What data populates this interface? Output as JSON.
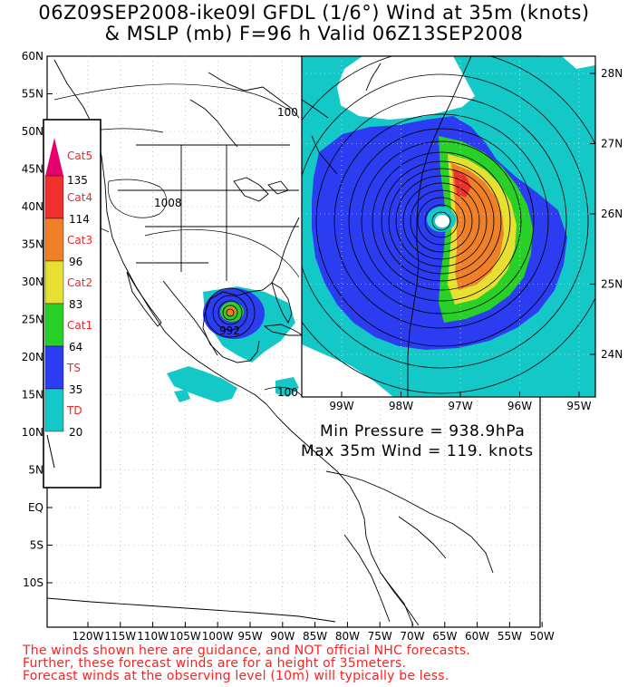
{
  "title": {
    "line1": "06Z09SEP2008-ike09l GFDL (1/6°) Wind at 35m (knots)",
    "line2": "& MSLP (mb) F=96 h Valid 06Z13SEP2008"
  },
  "main_map": {
    "lat_labels": [
      "60N",
      "55N",
      "50N",
      "45N",
      "40N",
      "35N",
      "30N",
      "25N",
      "20N",
      "15N",
      "10N",
      "5N",
      "EQ",
      "5S",
      "10S"
    ],
    "lon_labels": [
      "120W",
      "115W",
      "110W",
      "105W",
      "100W",
      "95W",
      "90W",
      "85W",
      "80W",
      "75W",
      "70W",
      "65W",
      "60W",
      "55W",
      "50W"
    ],
    "isobar_labels": [
      "1008",
      "992",
      "100",
      "100"
    ]
  },
  "inset_map": {
    "lat_labels": [
      "28N",
      "27N",
      "26N",
      "25N",
      "24N"
    ],
    "lon_labels": [
      "99W",
      "98W",
      "97W",
      "96W",
      "95W"
    ]
  },
  "legend": {
    "items": [
      {
        "category": "Cat5",
        "threshold": "135",
        "color": "#e6006e"
      },
      {
        "category": "Cat4",
        "threshold": "114",
        "color": "#f0302c"
      },
      {
        "category": "Cat3",
        "threshold": "96",
        "color": "#f08028"
      },
      {
        "category": "Cat2",
        "threshold": "83",
        "color": "#e8e030"
      },
      {
        "category": "Cat1",
        "threshold": "64",
        "color": "#28d028"
      },
      {
        "category": "TS",
        "threshold": "35",
        "color": "#2c3cf0"
      },
      {
        "category": "TD",
        "threshold": "20",
        "color": "#14c8c8"
      }
    ]
  },
  "stats": {
    "min_pressure": "Min Pressure = 938.9hPa",
    "max_wind": "Max 35m Wind = 119. knots"
  },
  "disclaimer": [
    "The winds shown here are guidance, and NOT official NHC forecasts.",
    "Further, these forecast winds are for a height of 35meters.",
    "Forecast winds at the observing level (10m) will typically be less."
  ],
  "colors": {
    "td": "#14c8c8",
    "ts": "#2c3cf0",
    "cat1": "#28d028",
    "cat2": "#e8e030",
    "cat3": "#f08028",
    "cat4": "#f0302c",
    "cat5": "#e6006e",
    "warning_text": "#ff2020"
  }
}
